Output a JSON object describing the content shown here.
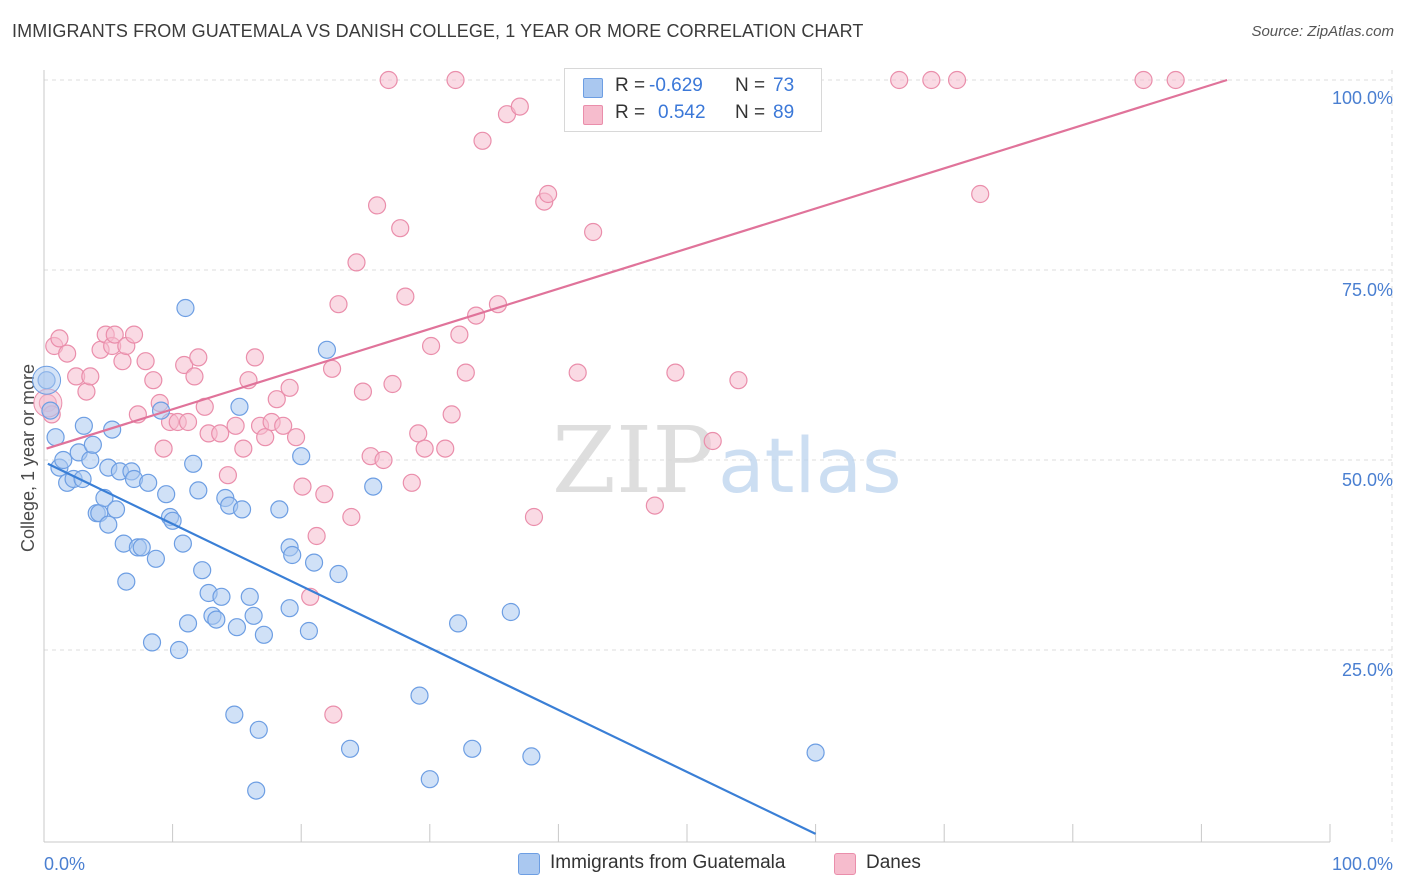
{
  "header": {
    "title": "IMMIGRANTS FROM GUATEMALA VS DANISH COLLEGE, 1 YEAR OR MORE CORRELATION CHART",
    "source": "Source: ZipAtlas.com"
  },
  "legend": {
    "series": [
      {
        "r_label": "R =",
        "r_value": "-0.629",
        "n_label": "N =",
        "n_value": "73"
      },
      {
        "r_label": "R =",
        "r_value": "0.542",
        "n_label": "N =",
        "n_value": "89"
      }
    ]
  },
  "bottom_legend": [
    "Immigrants from Guatemala",
    "Danes"
  ],
  "watermark": {
    "zip": "ZIP",
    "atlas": "atlas"
  },
  "colors": {
    "blue_fill": "#aac8f0",
    "blue_stroke": "#6d9ee3",
    "blue_line": "#3a7fd6",
    "pink_fill": "#f6bccd",
    "pink_stroke": "#ea8eab",
    "pink_line": "#e0739a",
    "grid": "#dddddd",
    "tick_text": "#4a7fd1"
  },
  "chart_data": {
    "type": "scatter",
    "title": "IMMIGRANTS FROM GUATEMALA VS DANISH COLLEGE, 1 YEAR OR MORE CORRELATION CHART",
    "xlabel": "",
    "ylabel": "College, 1 year or more",
    "xlim": [
      0,
      100
    ],
    "ylim": [
      0,
      100
    ],
    "x_tick_labels": [
      "0.0%",
      "100.0%"
    ],
    "y_tick_labels": [
      "25.0%",
      "50.0%",
      "75.0%",
      "100.0%"
    ],
    "y_ticks": [
      25,
      50,
      75,
      100
    ],
    "grid": true,
    "legend_position": "top-center",
    "series": [
      {
        "name": "Immigrants from Guatemala",
        "color": "#aac8f0",
        "trend": {
          "x": [
            0.3,
            60
          ],
          "y": [
            49.5,
            0.8
          ]
        },
        "points": [
          [
            0.2,
            60.5
          ],
          [
            0.5,
            56.5
          ],
          [
            0.9,
            53
          ],
          [
            1.2,
            49
          ],
          [
            1.5,
            50
          ],
          [
            1.8,
            47
          ],
          [
            2.3,
            47.5
          ],
          [
            2.7,
            51
          ],
          [
            3,
            47.5
          ],
          [
            3.1,
            54.5
          ],
          [
            3.6,
            50
          ],
          [
            3.8,
            52
          ],
          [
            4.1,
            43
          ],
          [
            4.3,
            43
          ],
          [
            4.7,
            45
          ],
          [
            5,
            49
          ],
          [
            5.3,
            54
          ],
          [
            5.6,
            43.5
          ],
          [
            5.9,
            48.5
          ],
          [
            6.2,
            39
          ],
          [
            6.4,
            34
          ],
          [
            6.8,
            48.5
          ],
          [
            7,
            47.5
          ],
          [
            7.3,
            38.5
          ],
          [
            7.6,
            38.5
          ],
          [
            8.1,
            47
          ],
          [
            8.4,
            26
          ],
          [
            8.7,
            37
          ],
          [
            9.1,
            56.5
          ],
          [
            9.5,
            45.5
          ],
          [
            9.8,
            42.5
          ],
          [
            10,
            42
          ],
          [
            10.5,
            25
          ],
          [
            10.8,
            39
          ],
          [
            11,
            70
          ],
          [
            11.2,
            28.5
          ],
          [
            11.6,
            49.5
          ],
          [
            12,
            46
          ],
          [
            12.3,
            35.5
          ],
          [
            12.8,
            32.5
          ],
          [
            13.1,
            29.5
          ],
          [
            13.4,
            29
          ],
          [
            13.8,
            32
          ],
          [
            14.1,
            45
          ],
          [
            14.4,
            44
          ],
          [
            14.8,
            16.5
          ],
          [
            15,
            28
          ],
          [
            15.2,
            57
          ],
          [
            15.4,
            43.5
          ],
          [
            16,
            32
          ],
          [
            16.3,
            29.5
          ],
          [
            16.7,
            14.5
          ],
          [
            17.1,
            27
          ],
          [
            16.5,
            6.5
          ],
          [
            18.3,
            43.5
          ],
          [
            19.1,
            38.5
          ],
          [
            19.3,
            37.5
          ],
          [
            19.1,
            30.5
          ],
          [
            20,
            50.5
          ],
          [
            20.6,
            27.5
          ],
          [
            21,
            36.5
          ],
          [
            22,
            64.5
          ],
          [
            22.9,
            35
          ],
          [
            23.8,
            12
          ],
          [
            25.6,
            46.5
          ],
          [
            29.2,
            19
          ],
          [
            30,
            8
          ],
          [
            32.2,
            28.5
          ],
          [
            33.3,
            12
          ],
          [
            36.3,
            30
          ],
          [
            37.9,
            11
          ],
          [
            60,
            11.5
          ],
          [
            5,
            41.5
          ]
        ]
      },
      {
        "name": "Danes",
        "color": "#f6bccd",
        "trend": {
          "x": [
            0.2,
            92
          ],
          "y": [
            51.5,
            100
          ]
        },
        "points": [
          [
            0.3,
            57.5
          ],
          [
            0.6,
            56
          ],
          [
            0.8,
            65
          ],
          [
            1.2,
            66
          ],
          [
            1.8,
            64
          ],
          [
            2.5,
            61
          ],
          [
            3.3,
            59
          ],
          [
            3.6,
            61
          ],
          [
            4.4,
            64.5
          ],
          [
            4.8,
            66.5
          ],
          [
            5.3,
            65
          ],
          [
            5.5,
            66.5
          ],
          [
            6.1,
            63
          ],
          [
            6.4,
            65
          ],
          [
            7,
            66.5
          ],
          [
            7.3,
            56
          ],
          [
            7.9,
            63
          ],
          [
            8.5,
            60.5
          ],
          [
            9,
            57.5
          ],
          [
            9.3,
            51.5
          ],
          [
            9.8,
            55
          ],
          [
            10.4,
            55
          ],
          [
            10.9,
            62.5
          ],
          [
            11.2,
            55
          ],
          [
            11.7,
            61
          ],
          [
            12,
            63.5
          ],
          [
            12.5,
            57
          ],
          [
            12.8,
            53.5
          ],
          [
            13.7,
            53.5
          ],
          [
            14.3,
            48
          ],
          [
            14.9,
            54.5
          ],
          [
            15.5,
            51.5
          ],
          [
            15.9,
            60.5
          ],
          [
            16.4,
            63.5
          ],
          [
            16.8,
            54.5
          ],
          [
            17.2,
            53
          ],
          [
            17.7,
            55
          ],
          [
            18.1,
            58
          ],
          [
            18.6,
            54.5
          ],
          [
            19.1,
            59.5
          ],
          [
            19.6,
            53
          ],
          [
            20.1,
            46.5
          ],
          [
            20.7,
            32
          ],
          [
            21.2,
            40
          ],
          [
            21.8,
            45.5
          ],
          [
            22.4,
            62
          ],
          [
            22.9,
            70.5
          ],
          [
            22.5,
            16.5
          ],
          [
            23.9,
            42.5
          ],
          [
            24.3,
            76
          ],
          [
            24.8,
            59
          ],
          [
            25.4,
            50.5
          ],
          [
            25.9,
            83.5
          ],
          [
            26.4,
            50
          ],
          [
            27.1,
            60
          ],
          [
            27.7,
            80.5
          ],
          [
            28.1,
            71.5
          ],
          [
            28.6,
            47
          ],
          [
            29.1,
            53.5
          ],
          [
            29.6,
            51.5
          ],
          [
            30.1,
            65
          ],
          [
            31.2,
            51.5
          ],
          [
            31.7,
            56
          ],
          [
            32.3,
            66.5
          ],
          [
            32.8,
            61.5
          ],
          [
            33.6,
            69
          ],
          [
            34.1,
            92
          ],
          [
            35.3,
            70.5
          ],
          [
            36,
            95.5
          ],
          [
            37,
            96.5
          ],
          [
            38.1,
            42.5
          ],
          [
            38.9,
            84
          ],
          [
            39.2,
            85
          ],
          [
            41.5,
            61.5
          ],
          [
            42.7,
            80
          ],
          [
            44.5,
            100
          ],
          [
            47.5,
            44
          ],
          [
            49.1,
            61.5
          ],
          [
            52,
            52.5
          ],
          [
            54,
            60.5
          ],
          [
            66.5,
            100
          ],
          [
            69,
            100
          ],
          [
            71,
            100
          ],
          [
            72.8,
            85
          ],
          [
            85.5,
            100
          ],
          [
            88,
            100
          ],
          [
            32,
            100
          ],
          [
            42,
            100
          ],
          [
            26.8,
            100
          ]
        ]
      }
    ]
  }
}
